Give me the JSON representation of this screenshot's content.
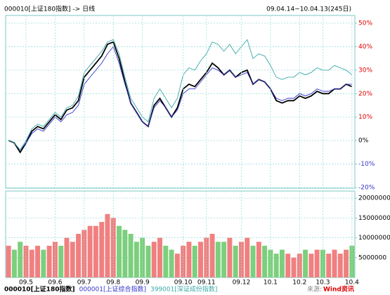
{
  "header": {
    "left": "000010[上证180指数] -> 日线",
    "right": "09.04.14~10.04.13(245日)"
  },
  "source": {
    "label": "来源:",
    "brand": "Wind资讯"
  },
  "chart_data": [
    {
      "type": "line",
      "ylim": [
        -20.3,
        53.3
      ],
      "yticks": [
        {
          "value": 50,
          "label": "50%"
        },
        {
          "value": 40,
          "label": "40%"
        },
        {
          "value": 30,
          "label": "30%"
        },
        {
          "value": 20,
          "label": "20%"
        },
        {
          "value": 10,
          "label": "10%"
        },
        {
          "value": 0,
          "label": "0%"
        },
        {
          "value": -10,
          "label": "-10%"
        },
        {
          "value": -20,
          "label": "-20%"
        }
      ],
      "grid": true,
      "series": [
        {
          "name": "000010[上证180指数]",
          "color": "#000000",
          "values": [
            0,
            -1,
            -5,
            -1,
            4,
            6,
            5,
            8,
            11,
            9,
            13,
            14,
            17,
            27,
            30,
            33,
            36,
            41,
            42,
            35,
            25,
            16,
            12,
            8,
            6,
            15,
            18,
            14,
            10,
            14,
            22,
            24,
            23,
            26,
            29,
            33,
            31,
            28,
            30,
            27,
            29,
            30,
            24,
            26,
            25,
            22,
            17,
            16,
            17,
            17,
            19,
            18,
            19,
            21,
            20,
            20,
            22,
            22,
            24,
            23
          ]
        },
        {
          "name": "000001[上证综合指数]",
          "color": "#3333cc",
          "values": [
            0,
            -1,
            -4,
            -1,
            3,
            5,
            4,
            7,
            10,
            8,
            11,
            12,
            15,
            24,
            27,
            30,
            33,
            37,
            40,
            33,
            24,
            16,
            12,
            8,
            6,
            14,
            17,
            14,
            10,
            13,
            20,
            22,
            22,
            25,
            28,
            31,
            30,
            28,
            30,
            27,
            28,
            29,
            24,
            26,
            25,
            22,
            18,
            17,
            18,
            18,
            20,
            19,
            20,
            22,
            21,
            21,
            22,
            22,
            24,
            24
          ]
        },
        {
          "name": "399001[深证成份指数]",
          "color": "#3aa8a8",
          "values": [
            0,
            -1,
            -4,
            0,
            5,
            7,
            6,
            9,
            12,
            10,
            14,
            15,
            19,
            29,
            32,
            35,
            38,
            42,
            43,
            37,
            27,
            18,
            14,
            10,
            8,
            18,
            22,
            18,
            14,
            18,
            28,
            31,
            30,
            34,
            37,
            42,
            41,
            38,
            41,
            37,
            40,
            43,
            35,
            37,
            36,
            32,
            27,
            26,
            27,
            27,
            29,
            28,
            29,
            31,
            30,
            30,
            32,
            31,
            30,
            28
          ]
        }
      ]
    },
    {
      "type": "bar",
      "categories": [
        null,
        null,
        null,
        "09.5",
        null,
        null,
        null,
        null,
        "09.6",
        null,
        null,
        null,
        null,
        "09.7",
        null,
        null,
        null,
        null,
        "09.8",
        null,
        null,
        null,
        null,
        "09.9",
        null,
        null,
        null,
        null,
        null,
        null,
        "09.10",
        null,
        null,
        null,
        "09.11",
        null,
        null,
        null,
        null,
        null,
        "09.12",
        null,
        null,
        null,
        null,
        "10.1",
        null,
        null,
        null,
        null,
        "10.2",
        null,
        null,
        null,
        "10.3",
        null,
        null,
        null,
        null,
        "10.4"
      ],
      "ylim": [
        0,
        21800000
      ],
      "yticks": [
        20000000,
        15000000,
        10000000,
        5000000
      ],
      "grid": true,
      "up_color": "#f08080",
      "down_color": "#7ccf7c",
      "values": [
        8000000,
        7000000,
        9000000,
        8000000,
        7000000,
        8000000,
        7000000,
        8000000,
        9000000,
        8000000,
        10000000,
        9000000,
        11000000,
        12000000,
        13000000,
        13000000,
        14000000,
        16000000,
        15000000,
        13000000,
        12000000,
        11000000,
        9000000,
        10000000,
        8000000,
        9000000,
        10000000,
        8000000,
        7000000,
        6000000,
        8000000,
        9000000,
        8000000,
        9000000,
        10000000,
        11000000,
        9000000,
        9000000,
        10000000,
        8000000,
        9000000,
        10000000,
        8000000,
        9000000,
        8000000,
        7000000,
        6000000,
        7000000,
        6000000,
        5000000,
        6000000,
        7000000,
        6000000,
        7000000,
        7000000,
        6000000,
        7000000,
        6000000,
        7000000,
        8000000
      ]
    }
  ]
}
